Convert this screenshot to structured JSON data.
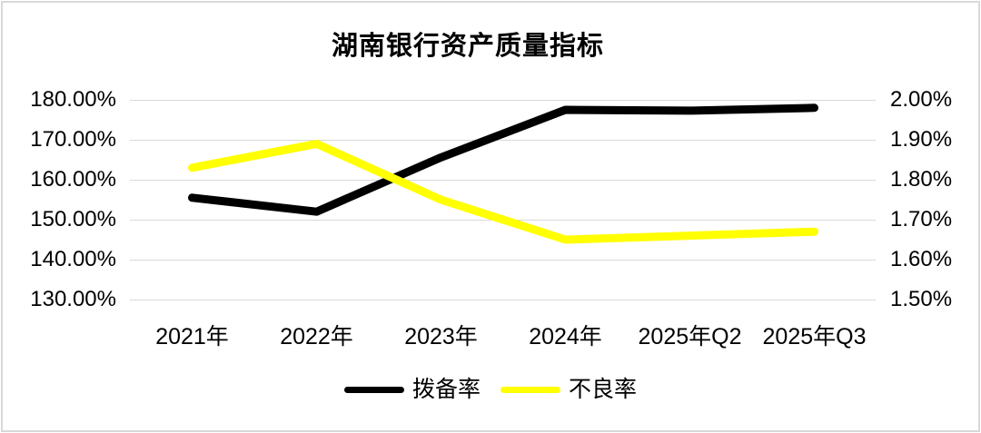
{
  "title": "湖南银行资产质量指标",
  "chart_data": {
    "type": "line",
    "categories": [
      "2021年",
      "2022年",
      "2023年",
      "2024年",
      "2025年Q2",
      "2025年Q3"
    ],
    "series": [
      {
        "name": "拨备率",
        "axis": "left",
        "color": "#000000",
        "values": [
          155.5,
          152.0,
          165.6,
          177.5,
          177.3,
          178.0
        ]
      },
      {
        "name": "不良率",
        "axis": "right",
        "color": "#ffff00",
        "values": [
          1.83,
          1.89,
          1.75,
          1.65,
          1.66,
          1.67
        ]
      }
    ],
    "left_axis": {
      "min": 130,
      "max": 180,
      "tick_labels_top_to_bottom": [
        "180.00%",
        "170.00%",
        "160.00%",
        "150.00%",
        "140.00%",
        "130.00%"
      ]
    },
    "right_axis": {
      "min": 1.5,
      "max": 2.0,
      "tick_labels_top_to_bottom": [
        "2.00%",
        "1.90%",
        "1.80%",
        "1.70%",
        "1.60%",
        "1.50%"
      ]
    },
    "grid": true,
    "legend_position": "bottom"
  },
  "colors": {
    "background": "#ffffff",
    "frame_border": "#d9d9d9",
    "gridline": "#d9d9d9",
    "text": "#000000",
    "series_provision": "#000000",
    "series_npl": "#ffff00"
  }
}
